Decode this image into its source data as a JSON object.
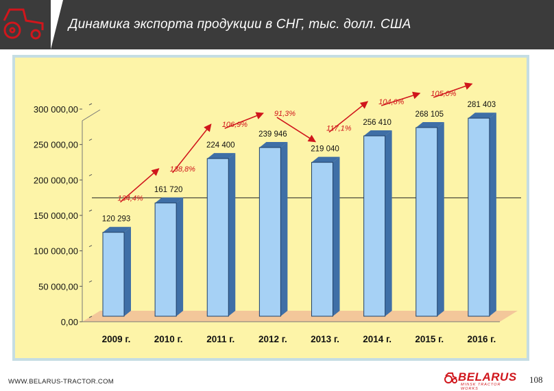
{
  "header": {
    "title": "Динамика экспорта продукции в СНГ, тыс. долл. США"
  },
  "footer": {
    "url": "WWW.BELARUS-TRACTOR.COM",
    "brand": "BELARUS",
    "brand_sub": "MINSK TRACTOR WORKS",
    "page_number": "108"
  },
  "colors": {
    "header_bg": "#3b3b3b",
    "logo_red": "#d0161c",
    "chart_bg": "#fdf4a8",
    "bar_fill": "#a6d1f5",
    "bar_side": "#3f6fa6",
    "floor": "#f3c79a",
    "arrow": "#d0161c",
    "frame": "#c5dde3"
  },
  "chart_data": {
    "type": "bar",
    "categories": [
      "2009 г.",
      "2010 г.",
      "2011 г.",
      "2012 г.",
      "2013 г.",
      "2014 г.",
      "2015 г.",
      "2016 г."
    ],
    "values": [
      120293,
      161720,
      224400,
      239946,
      219040,
      256410,
      268105,
      281403
    ],
    "value_labels": [
      "120 293",
      "161 720",
      "224 400",
      "239 946",
      "219 040",
      "256 410",
      "268 105",
      "281 403"
    ],
    "growth_labels": [
      "134,4%",
      "138,8%",
      "106,9%",
      "91,3%",
      "117,1%",
      "104,6%",
      "105,0%"
    ],
    "yticks": [
      0,
      50000,
      100000,
      150000,
      200000,
      250000,
      300000
    ],
    "ytick_labels": [
      "0,00",
      "50 000,00",
      "100 000,00",
      "150 000,00",
      "200 000,00",
      "250 000,00",
      "300 000,00"
    ],
    "ylim": [
      0,
      300000
    ],
    "reference_line": 167000,
    "grid": false
  }
}
